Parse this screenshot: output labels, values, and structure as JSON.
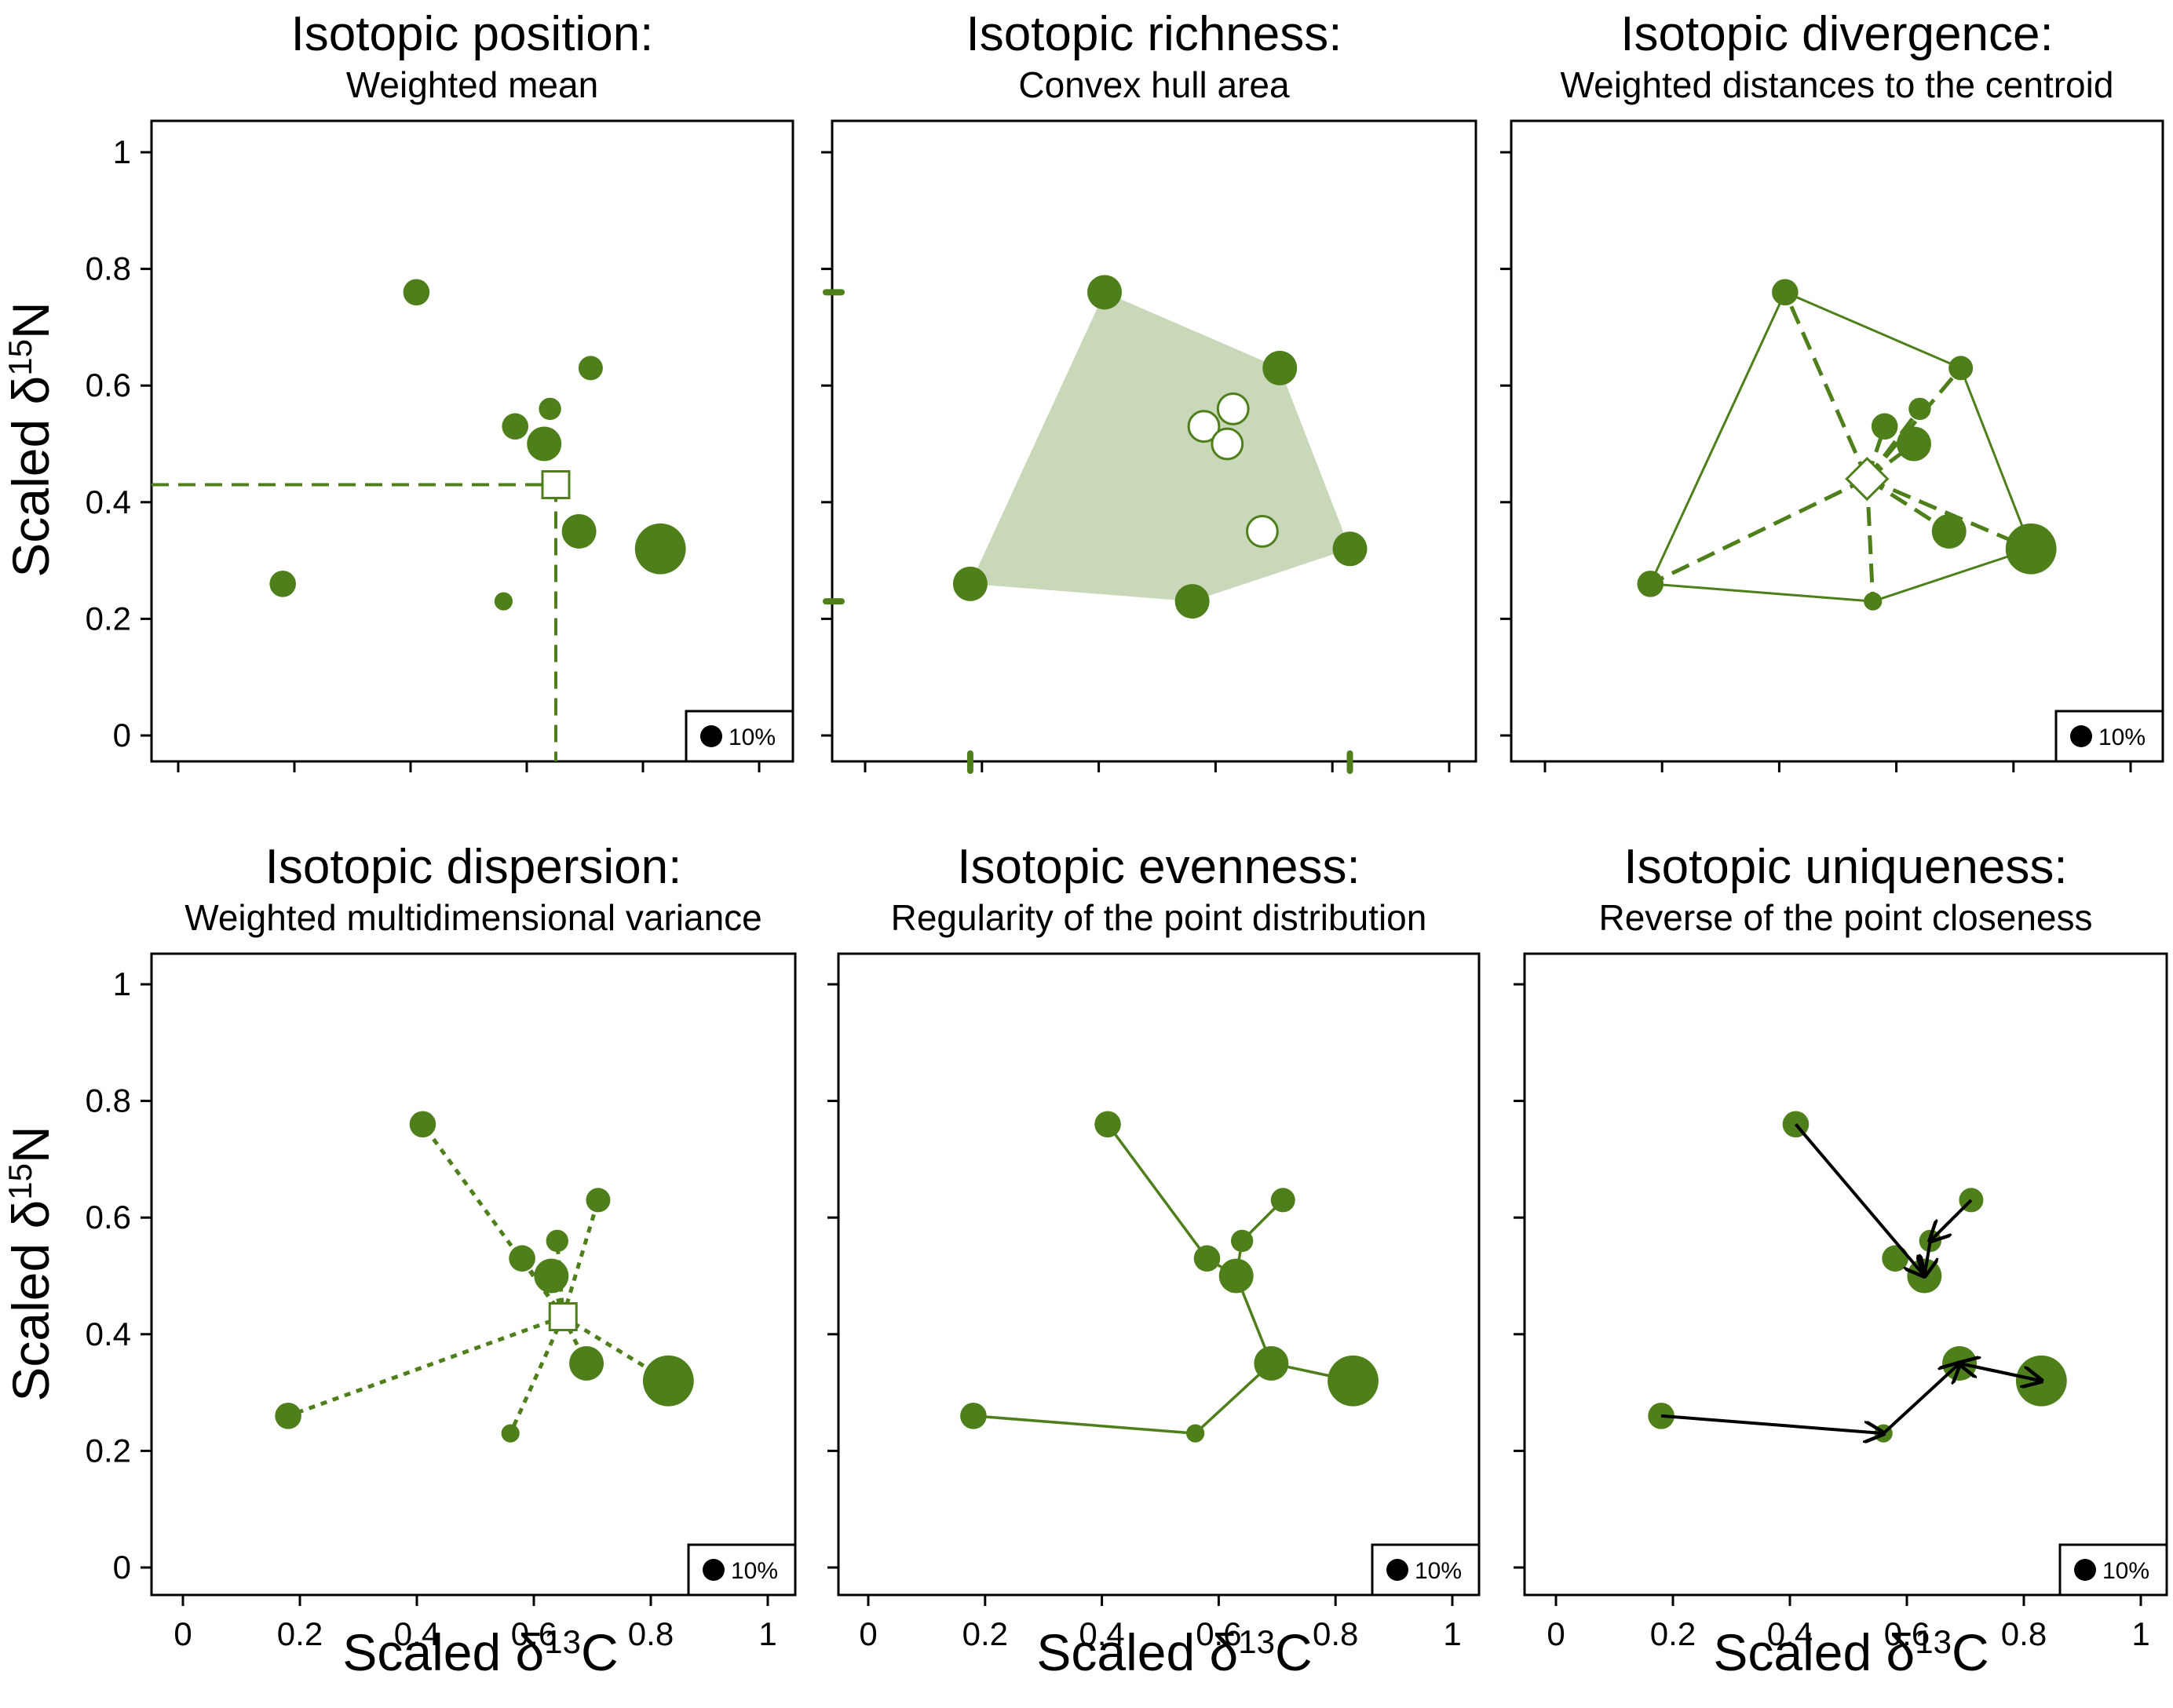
{
  "figure": {
    "ylabel_main": "Scaled δ",
    "ylabel_sup": "15",
    "ylabel_end": "N",
    "xlabel_main": "Scaled δ",
    "xlabel_sup": "13",
    "xlabel_end": "C"
  },
  "colors": {
    "point": "#4E7F1B",
    "hull_fill": "#C8D8B8",
    "arrow": "#000000",
    "frame": "#000000"
  },
  "chart_data": [
    {
      "id": "position",
      "type": "scatter",
      "title": "Isotopic position:",
      "subtitle": "Weighted mean",
      "xlim": [
        0,
        1
      ],
      "ylim": [
        0,
        1
      ],
      "ytick_labels": [
        "0",
        "0.2",
        "0.4",
        "0.6",
        "0.8",
        "1"
      ],
      "xtick_labels": [],
      "legend": "10%",
      "points": [
        {
          "x": 0.18,
          "y": 0.26,
          "w": 3
        },
        {
          "x": 0.41,
          "y": 0.76,
          "w": 3
        },
        {
          "x": 0.58,
          "y": 0.53,
          "w": 3
        },
        {
          "x": 0.63,
          "y": 0.5,
          "w": 5
        },
        {
          "x": 0.64,
          "y": 0.56,
          "w": 2
        },
        {
          "x": 0.71,
          "y": 0.63,
          "w": 2.5
        },
        {
          "x": 0.69,
          "y": 0.35,
          "w": 5
        },
        {
          "x": 0.83,
          "y": 0.32,
          "w": 9
        },
        {
          "x": 0.56,
          "y": 0.23,
          "w": 1
        }
      ],
      "centroid": {
        "x": 0.65,
        "y": 0.43
      }
    },
    {
      "id": "richness",
      "type": "scatter",
      "title": "Isotopic richness:",
      "subtitle": "Convex hull area",
      "xlim": [
        0,
        1
      ],
      "ylim": [
        0,
        1
      ],
      "ytick_labels": [],
      "xtick_labels": [],
      "legend": "",
      "points": [
        {
          "x": 0.18,
          "y": 0.26,
          "w": 5,
          "hull": true
        },
        {
          "x": 0.41,
          "y": 0.76,
          "w": 5,
          "hull": true
        },
        {
          "x": 0.71,
          "y": 0.63,
          "w": 5,
          "hull": true
        },
        {
          "x": 0.83,
          "y": 0.32,
          "w": 5,
          "hull": true
        },
        {
          "x": 0.56,
          "y": 0.23,
          "w": 5,
          "hull": true
        },
        {
          "x": 0.58,
          "y": 0.53,
          "w": 4,
          "hull": false
        },
        {
          "x": 0.63,
          "y": 0.56,
          "w": 4,
          "hull": false
        },
        {
          "x": 0.62,
          "y": 0.5,
          "w": 4,
          "hull": false
        },
        {
          "x": 0.68,
          "y": 0.35,
          "w": 4,
          "hull": false
        }
      ],
      "axis_marks": {
        "y": [
          0.76,
          0.23
        ],
        "x": [
          0.18,
          0.83
        ]
      }
    },
    {
      "id": "divergence",
      "type": "scatter",
      "title": "Isotopic divergence:",
      "subtitle": "Weighted distances to the centroid",
      "xlim": [
        0,
        1
      ],
      "ylim": [
        0,
        1
      ],
      "ytick_labels": [],
      "xtick_labels": [],
      "legend": "10%",
      "points": [
        {
          "x": 0.18,
          "y": 0.26,
          "w": 3
        },
        {
          "x": 0.41,
          "y": 0.76,
          "w": 3
        },
        {
          "x": 0.58,
          "y": 0.53,
          "w": 3
        },
        {
          "x": 0.63,
          "y": 0.5,
          "w": 5
        },
        {
          "x": 0.64,
          "y": 0.56,
          "w": 2
        },
        {
          "x": 0.71,
          "y": 0.63,
          "w": 2.5
        },
        {
          "x": 0.69,
          "y": 0.35,
          "w": 5
        },
        {
          "x": 0.83,
          "y": 0.32,
          "w": 9
        },
        {
          "x": 0.56,
          "y": 0.23,
          "w": 1
        }
      ],
      "centroid": {
        "x": 0.55,
        "y": 0.44
      },
      "hull_order": [
        0,
        1,
        5,
        7,
        8
      ]
    },
    {
      "id": "dispersion",
      "type": "scatter",
      "title": "Isotopic dispersion:",
      "subtitle": "Weighted multidimensional variance",
      "xlim": [
        0,
        1
      ],
      "ylim": [
        0,
        1
      ],
      "ytick_labels": [
        "0",
        "0.2",
        "0.4",
        "0.6",
        "0.8",
        "1"
      ],
      "xtick_labels": [
        "0",
        "0.2",
        "0.4",
        "0.6",
        "0.8",
        "1"
      ],
      "legend": "10%",
      "points": [
        {
          "x": 0.18,
          "y": 0.26,
          "w": 3
        },
        {
          "x": 0.41,
          "y": 0.76,
          "w": 3
        },
        {
          "x": 0.58,
          "y": 0.53,
          "w": 3
        },
        {
          "x": 0.63,
          "y": 0.5,
          "w": 5
        },
        {
          "x": 0.64,
          "y": 0.56,
          "w": 2
        },
        {
          "x": 0.71,
          "y": 0.63,
          "w": 2.5
        },
        {
          "x": 0.69,
          "y": 0.35,
          "w": 5
        },
        {
          "x": 0.83,
          "y": 0.32,
          "w": 9
        },
        {
          "x": 0.56,
          "y": 0.23,
          "w": 1
        }
      ],
      "centroid": {
        "x": 0.65,
        "y": 0.43
      }
    },
    {
      "id": "evenness",
      "type": "scatter",
      "title": "Isotopic evenness:",
      "subtitle": "Regularity of the point distribution",
      "xlim": [
        0,
        1
      ],
      "ylim": [
        0,
        1
      ],
      "ytick_labels": [],
      "xtick_labels": [
        "0",
        "0.2",
        "0.4",
        "0.6",
        "0.8",
        "1"
      ],
      "legend": "10%",
      "points": [
        {
          "x": 0.18,
          "y": 0.26,
          "w": 3
        },
        {
          "x": 0.41,
          "y": 0.76,
          "w": 3
        },
        {
          "x": 0.58,
          "y": 0.53,
          "w": 3
        },
        {
          "x": 0.63,
          "y": 0.5,
          "w": 5
        },
        {
          "x": 0.64,
          "y": 0.56,
          "w": 2
        },
        {
          "x": 0.71,
          "y": 0.63,
          "w": 2.5
        },
        {
          "x": 0.69,
          "y": 0.35,
          "w": 5
        },
        {
          "x": 0.83,
          "y": 0.32,
          "w": 9
        },
        {
          "x": 0.56,
          "y": 0.23,
          "w": 1
        }
      ],
      "mst_edges": [
        [
          1,
          2
        ],
        [
          2,
          3
        ],
        [
          3,
          4
        ],
        [
          4,
          5
        ],
        [
          3,
          6
        ],
        [
          6,
          7
        ],
        [
          6,
          8
        ],
        [
          8,
          0
        ]
      ]
    },
    {
      "id": "uniqueness",
      "type": "scatter",
      "title": "Isotopic uniqueness:",
      "subtitle": "Reverse of the point closeness",
      "xlim": [
        0,
        1
      ],
      "ylim": [
        0,
        1
      ],
      "ytick_labels": [],
      "xtick_labels": [
        "0",
        "0.2",
        "0.4",
        "0.6",
        "0.8",
        "1"
      ],
      "legend": "10%",
      "points": [
        {
          "x": 0.18,
          "y": 0.26,
          "w": 3
        },
        {
          "x": 0.41,
          "y": 0.76,
          "w": 3
        },
        {
          "x": 0.58,
          "y": 0.53,
          "w": 3
        },
        {
          "x": 0.63,
          "y": 0.5,
          "w": 5
        },
        {
          "x": 0.64,
          "y": 0.56,
          "w": 2
        },
        {
          "x": 0.71,
          "y": 0.63,
          "w": 2.5
        },
        {
          "x": 0.69,
          "y": 0.35,
          "w": 5
        },
        {
          "x": 0.83,
          "y": 0.32,
          "w": 9
        },
        {
          "x": 0.56,
          "y": 0.23,
          "w": 1
        }
      ],
      "arrows": [
        {
          "from": 1,
          "to": 3
        },
        {
          "from": 5,
          "to": 4
        },
        {
          "from": 4,
          "to": 3
        },
        {
          "from": 0,
          "to": 8
        },
        {
          "from": 8,
          "to": 6
        },
        {
          "from": 7,
          "to": 6
        },
        {
          "from": 6,
          "to": 7
        }
      ]
    }
  ]
}
